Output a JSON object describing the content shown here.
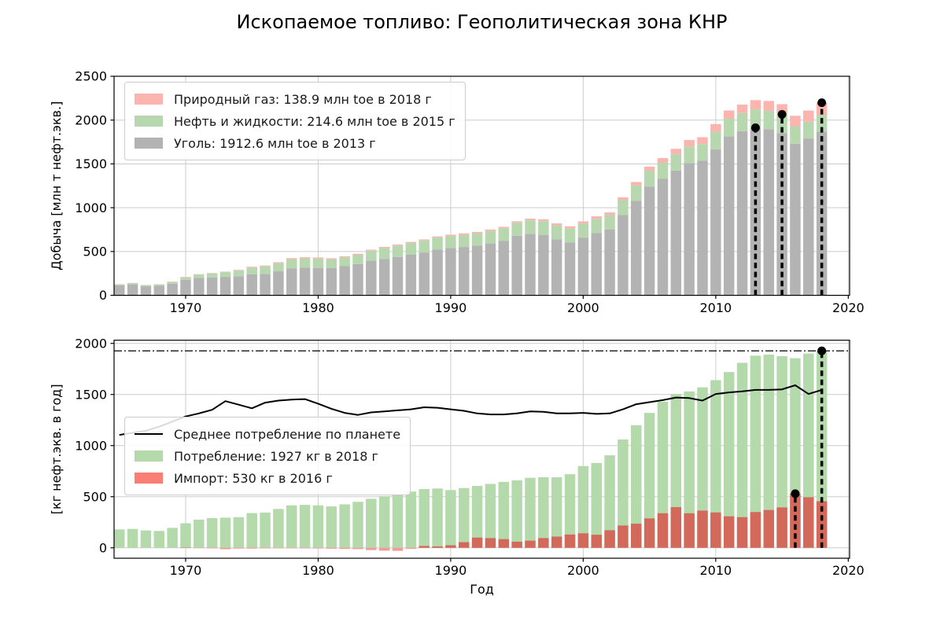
{
  "title": "Ископаемое топливо: Геополитическая зона КНР",
  "years": [
    1965,
    1966,
    1967,
    1968,
    1969,
    1970,
    1971,
    1972,
    1973,
    1974,
    1975,
    1976,
    1977,
    1978,
    1979,
    1980,
    1981,
    1982,
    1983,
    1984,
    1985,
    1986,
    1987,
    1988,
    1989,
    1990,
    1991,
    1992,
    1993,
    1994,
    1995,
    1996,
    1997,
    1998,
    1999,
    2000,
    2001,
    2002,
    2003,
    2004,
    2005,
    2006,
    2007,
    2008,
    2009,
    2010,
    2011,
    2012,
    2013,
    2014,
    2015,
    2016,
    2017,
    2018
  ],
  "chart_data": [
    {
      "type": "bar",
      "stacked": true,
      "title": "",
      "ylabel": "Добыча [млн т нефт.экв.]",
      "xlabel": "",
      "xlim": [
        1964.6,
        2020.1
      ],
      "ylim": [
        0,
        2500
      ],
      "yticks": [
        0,
        500,
        1000,
        1500,
        2000,
        2500
      ],
      "xticks": [
        1970,
        1980,
        1990,
        2000,
        2010,
        2020
      ],
      "grid": true,
      "legend_position": "upper left",
      "series": [
        {
          "name": "Уголь",
          "legend_label": "Уголь: 1912.6 млн toe в 2013 г",
          "color": "#b3b3b3",
          "values": [
            115,
            125,
            103,
            110,
            133,
            177,
            199,
            205,
            211,
            218,
            241,
            244,
            274,
            309,
            316,
            313,
            311,
            333,
            357,
            395,
            416,
            437,
            463,
            489,
            521,
            540,
            552,
            567,
            592,
            620,
            680,
            700,
            687,
            640,
            605,
            656,
            710,
            750,
            917,
            1080,
            1242,
            1329,
            1424,
            1510,
            1538,
            1665,
            1813,
            1873,
            1912.6,
            1895,
            1850,
            1730,
            1790,
            1870
          ]
        },
        {
          "name": "Нефть и жидкости",
          "legend_label": "Нефть и жидкости: 214.6 млн toe в 2015 г",
          "color": "#b7d8ae",
          "values": [
            11,
            15,
            14,
            15,
            22,
            30,
            39,
            46,
            54,
            65,
            77,
            87,
            94,
            104,
            106,
            106,
            101,
            102,
            106,
            115,
            125,
            131,
            134,
            137,
            138,
            138,
            141,
            142,
            144,
            146,
            149,
            157,
            160,
            160,
            160,
            163,
            164,
            167,
            170,
            176,
            181,
            184,
            186,
            190,
            189,
            203,
            203,
            207,
            210,
            211,
            214.6,
            200,
            192,
            189
          ]
        },
        {
          "name": "Природный газ",
          "legend_label": "Природный газ: 138.9 млн toe в 2018 г",
          "color": "#fbb4ae",
          "values": [
            1,
            1.2,
            1.4,
            1.4,
            1.8,
            2.5,
            3.4,
            4.3,
            5.4,
            6.8,
            8,
            9,
            10.5,
            12,
            13,
            12.8,
            11.5,
            10.7,
            11,
            11.2,
            11.6,
            12.4,
            12.5,
            12.7,
            13.5,
            13.8,
            14.4,
            14.2,
            15.1,
            15.8,
            16.2,
            18.2,
            20.5,
            21,
            22.7,
            24.5,
            27.3,
            29.5,
            31.5,
            37.3,
            44.5,
            53,
            62.4,
            72.7,
            77.1,
            86.4,
            93.3,
            96.5,
            104.8,
            112.1,
            117.3,
            118.8,
            126.8,
            138.9
          ]
        }
      ],
      "markers": [
        {
          "year": 2013,
          "value": 1912.6
        },
        {
          "year": 2015,
          "value": 2064.6
        },
        {
          "year": 2018,
          "value": 2197.9
        }
      ]
    },
    {
      "type": "bar",
      "stacked": false,
      "title": "",
      "ylabel": "[кг нефт.экв. в год]",
      "xlabel": "Год",
      "xlim": [
        1964.6,
        2020.1
      ],
      "ylim": [
        -102,
        2031
      ],
      "yticks": [
        0,
        500,
        1000,
        1500,
        2000
      ],
      "xticks": [
        1970,
        1980,
        1990,
        2000,
        2010,
        2020
      ],
      "grid": true,
      "legend_position": "upper left",
      "series": [
        {
          "name": "Потребление",
          "legend_label": "Потребление: 1927 кг в 2018 г",
          "color": "#b4d9ab",
          "values": [
            180,
            185,
            170,
            165,
            195,
            240,
            275,
            290,
            295,
            300,
            340,
            345,
            380,
            415,
            420,
            415,
            405,
            425,
            450,
            480,
            505,
            525,
            550,
            575,
            580,
            565,
            585,
            605,
            625,
            645,
            660,
            685,
            690,
            690,
            720,
            800,
            830,
            905,
            1060,
            1200,
            1320,
            1430,
            1505,
            1530,
            1570,
            1640,
            1720,
            1810,
            1880,
            1890,
            1875,
            1855,
            1900,
            1927
          ]
        },
        {
          "name": "Импорт",
          "legend_label": "Импорт: 530 кг в 2016 г",
          "color": "#d2695b",
          "legend_color": "#fa7e74",
          "negative_color": "#f59b97",
          "values": [
            2,
            2,
            2,
            2,
            2,
            3,
            -4,
            -6,
            -14,
            -8,
            -8,
            -6,
            -5,
            -5,
            -6,
            -7,
            -9,
            -11,
            -13,
            -22,
            -28,
            -30,
            -10,
            18,
            14,
            25,
            55,
            100,
            95,
            85,
            60,
            70,
            95,
            110,
            130,
            142,
            128,
            172,
            218,
            236,
            288,
            338,
            398,
            338,
            364,
            346,
            308,
            300,
            350,
            370,
            395,
            530,
            495,
            455
          ]
        }
      ],
      "line": {
        "name": "Среднее потребление по планете",
        "legend_label": "Среднее потребление по планете",
        "color": "#000000",
        "values": [
          1105,
          1125,
          1145,
          1185,
          1235,
          1285,
          1315,
          1350,
          1435,
          1400,
          1365,
          1420,
          1440,
          1450,
          1455,
          1410,
          1360,
          1320,
          1300,
          1325,
          1335,
          1345,
          1355,
          1375,
          1370,
          1355,
          1340,
          1315,
          1305,
          1305,
          1315,
          1335,
          1330,
          1315,
          1315,
          1320,
          1310,
          1315,
          1355,
          1405,
          1425,
          1445,
          1470,
          1465,
          1440,
          1505,
          1520,
          1530,
          1545,
          1545,
          1550,
          1590,
          1505,
          1545
        ]
      },
      "hline": {
        "value": 1927,
        "style": "dashdot",
        "color": "#000000"
      },
      "markers": [
        {
          "year": 2016,
          "value": 530
        },
        {
          "year": 2018,
          "value": 1927
        }
      ]
    }
  ],
  "style": {
    "grid_color": "#cccccc",
    "spine_color": "#000000",
    "marker_color": "#000000"
  }
}
